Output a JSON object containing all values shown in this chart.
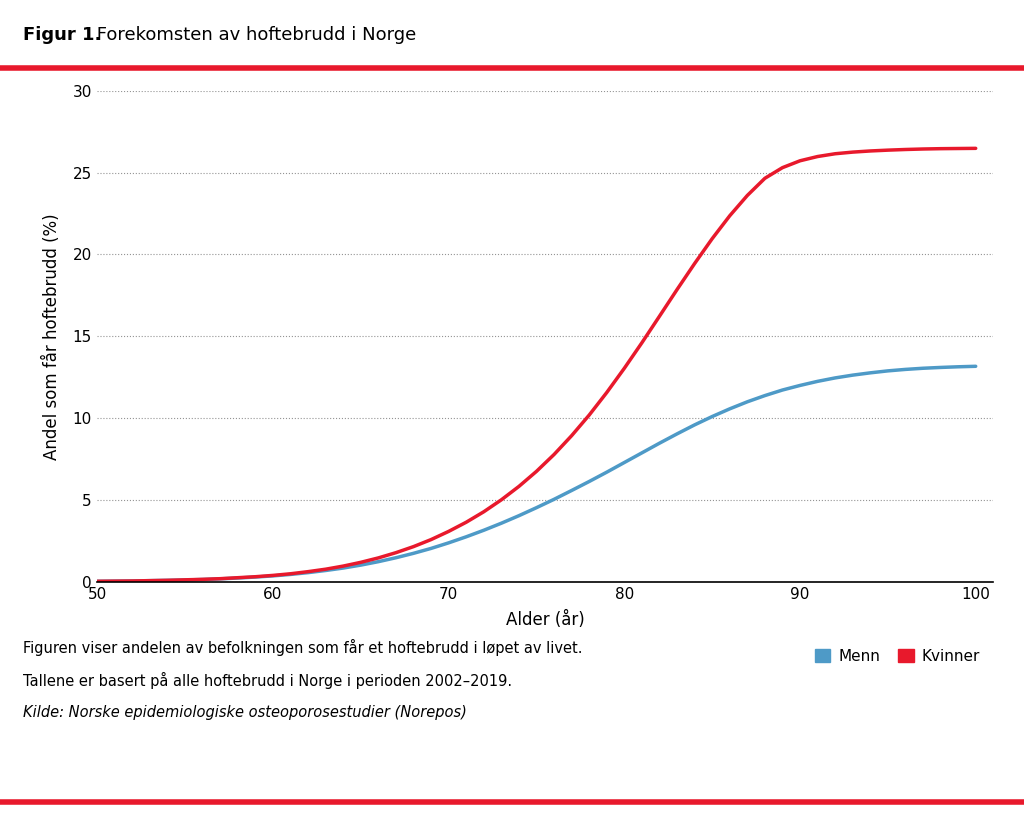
{
  "title_bold": "Figur 1.",
  "title_normal": " Forekomsten av hoftebrudd i Norge",
  "xlabel": "Alder (år)",
  "ylabel": "Andel som får hoftebrudd (%)",
  "xlim": [
    50,
    101
  ],
  "ylim": [
    0,
    30
  ],
  "yticks": [
    0,
    5,
    10,
    15,
    20,
    25,
    30
  ],
  "xticks": [
    50,
    60,
    70,
    80,
    90,
    100
  ],
  "color_menn": "#4e9ac7",
  "color_kvinner": "#e8192c",
  "line_width": 2.5,
  "caption_line1": "Figuren viser andelen av befolkningen som får et hoftebrudd i løpet av livet.",
  "caption_line2": "Tallene er basert på alle hoftebrudd i Norge i perioden 2002–2019.",
  "caption_line3": "Kilde: Norske epidemiologiske osteoporosestudier (Norepos)",
  "red_line_color": "#e8192c",
  "background_color": "#ffffff",
  "grid_color": "#888888",
  "ages": [
    50,
    51,
    52,
    53,
    54,
    55,
    56,
    57,
    58,
    59,
    60,
    61,
    62,
    63,
    64,
    65,
    66,
    67,
    68,
    69,
    70,
    71,
    72,
    73,
    74,
    75,
    76,
    77,
    78,
    79,
    80,
    81,
    82,
    83,
    84,
    85,
    86,
    87,
    88,
    89,
    90,
    91,
    92,
    93,
    94,
    95,
    96,
    97,
    98,
    99,
    100
  ],
  "menn": [
    0.02,
    0.03,
    0.04,
    0.06,
    0.08,
    0.1,
    0.13,
    0.17,
    0.22,
    0.28,
    0.35,
    0.44,
    0.55,
    0.68,
    0.83,
    1.01,
    1.22,
    1.46,
    1.73,
    2.03,
    2.37,
    2.74,
    3.14,
    3.57,
    4.03,
    4.52,
    5.03,
    5.57,
    6.12,
    6.69,
    7.28,
    7.87,
    8.46,
    9.03,
    9.58,
    10.09,
    10.56,
    10.99,
    11.37,
    11.71,
    11.99,
    12.24,
    12.45,
    12.62,
    12.76,
    12.88,
    12.97,
    13.04,
    13.09,
    13.13,
    13.16
  ],
  "kvinner": [
    0.02,
    0.03,
    0.04,
    0.06,
    0.08,
    0.11,
    0.14,
    0.18,
    0.24,
    0.3,
    0.38,
    0.48,
    0.61,
    0.76,
    0.95,
    1.18,
    1.45,
    1.77,
    2.14,
    2.57,
    3.07,
    3.63,
    4.27,
    5.0,
    5.82,
    6.74,
    7.77,
    8.92,
    10.18,
    11.56,
    13.04,
    14.6,
    16.22,
    17.85,
    19.44,
    20.96,
    22.36,
    23.6,
    24.65,
    25.3,
    25.72,
    25.98,
    26.15,
    26.25,
    26.32,
    26.37,
    26.41,
    26.44,
    26.46,
    26.47,
    26.48
  ],
  "title_fontsize": 13,
  "axis_fontsize": 12,
  "tick_fontsize": 11,
  "caption_fontsize": 10.5
}
